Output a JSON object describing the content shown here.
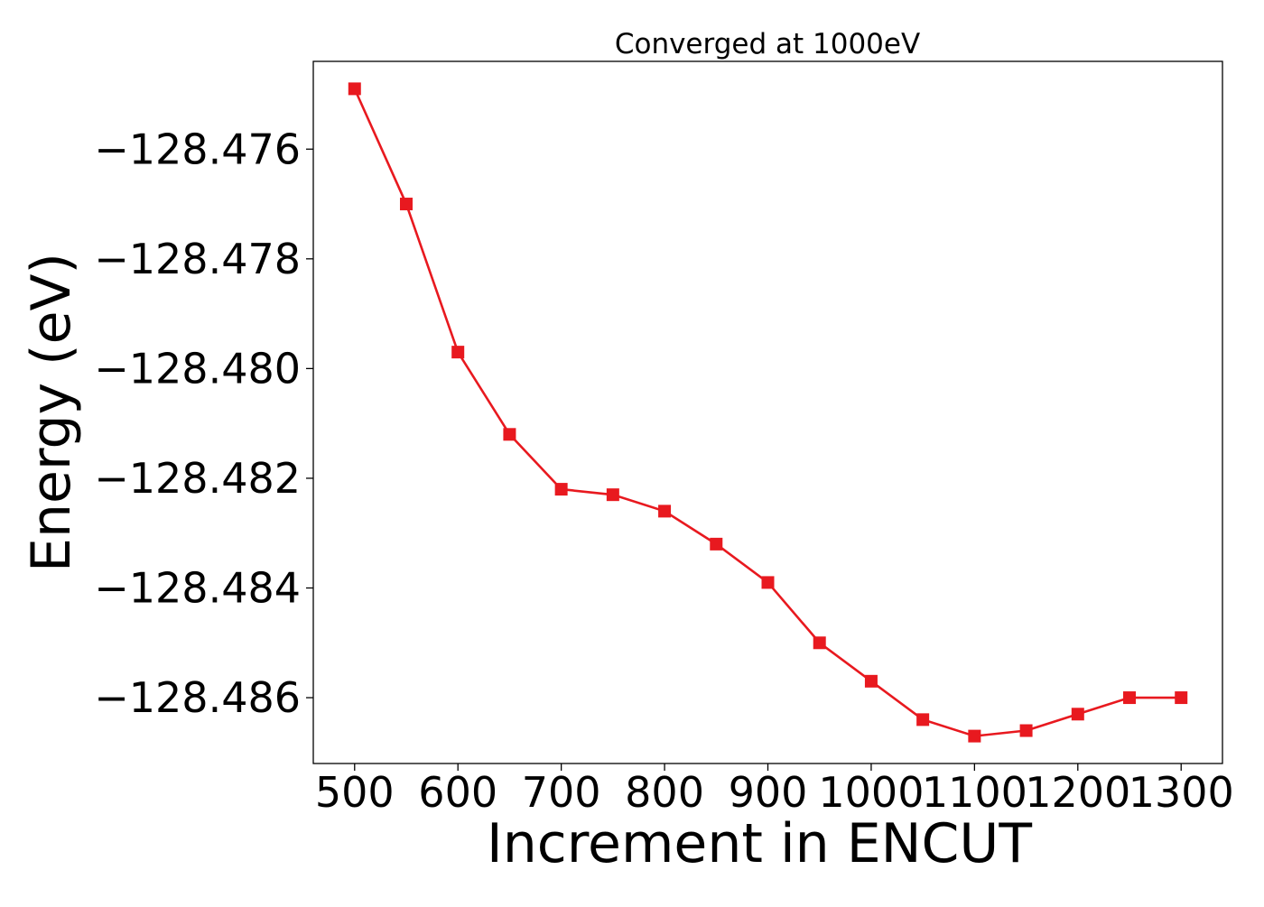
{
  "chart_data": {
    "type": "line",
    "title": "Converged at 1000eV",
    "xlabel": "Increment in ENCUT",
    "ylabel": "Energy (eV)",
    "x": [
      500,
      550,
      600,
      650,
      700,
      750,
      800,
      850,
      900,
      950,
      1000,
      1050,
      1100,
      1150,
      1200,
      1250,
      1300
    ],
    "series": [
      {
        "name": "",
        "values": [
          -128.4749,
          -128.477,
          -128.4797,
          -128.4812,
          -128.4822,
          -128.4823,
          -128.4826,
          -128.4832,
          -128.4839,
          -128.485,
          -128.4857,
          -128.4864,
          -128.4867,
          -128.4866,
          -128.4863,
          -128.486,
          -128.486
        ],
        "color": "#e8191f",
        "marker": "square"
      }
    ],
    "xlim": [
      460,
      1340
    ],
    "ylim": [
      -128.4872,
      -128.4744
    ],
    "xticks": [
      500,
      600,
      700,
      800,
      900,
      1000,
      1100,
      1200,
      1300
    ],
    "xtick_labels": [
      "500",
      "600",
      "700",
      "800",
      "900",
      "1000",
      "1100",
      "1200",
      "1300"
    ],
    "yticks": [
      -128.476,
      -128.478,
      -128.48,
      -128.482,
      -128.484,
      -128.486
    ],
    "ytick_labels": [
      "−128.476",
      "−128.478",
      "−128.480",
      "−128.482",
      "−128.484",
      "−128.486"
    ],
    "grid": false,
    "legend": "none"
  }
}
